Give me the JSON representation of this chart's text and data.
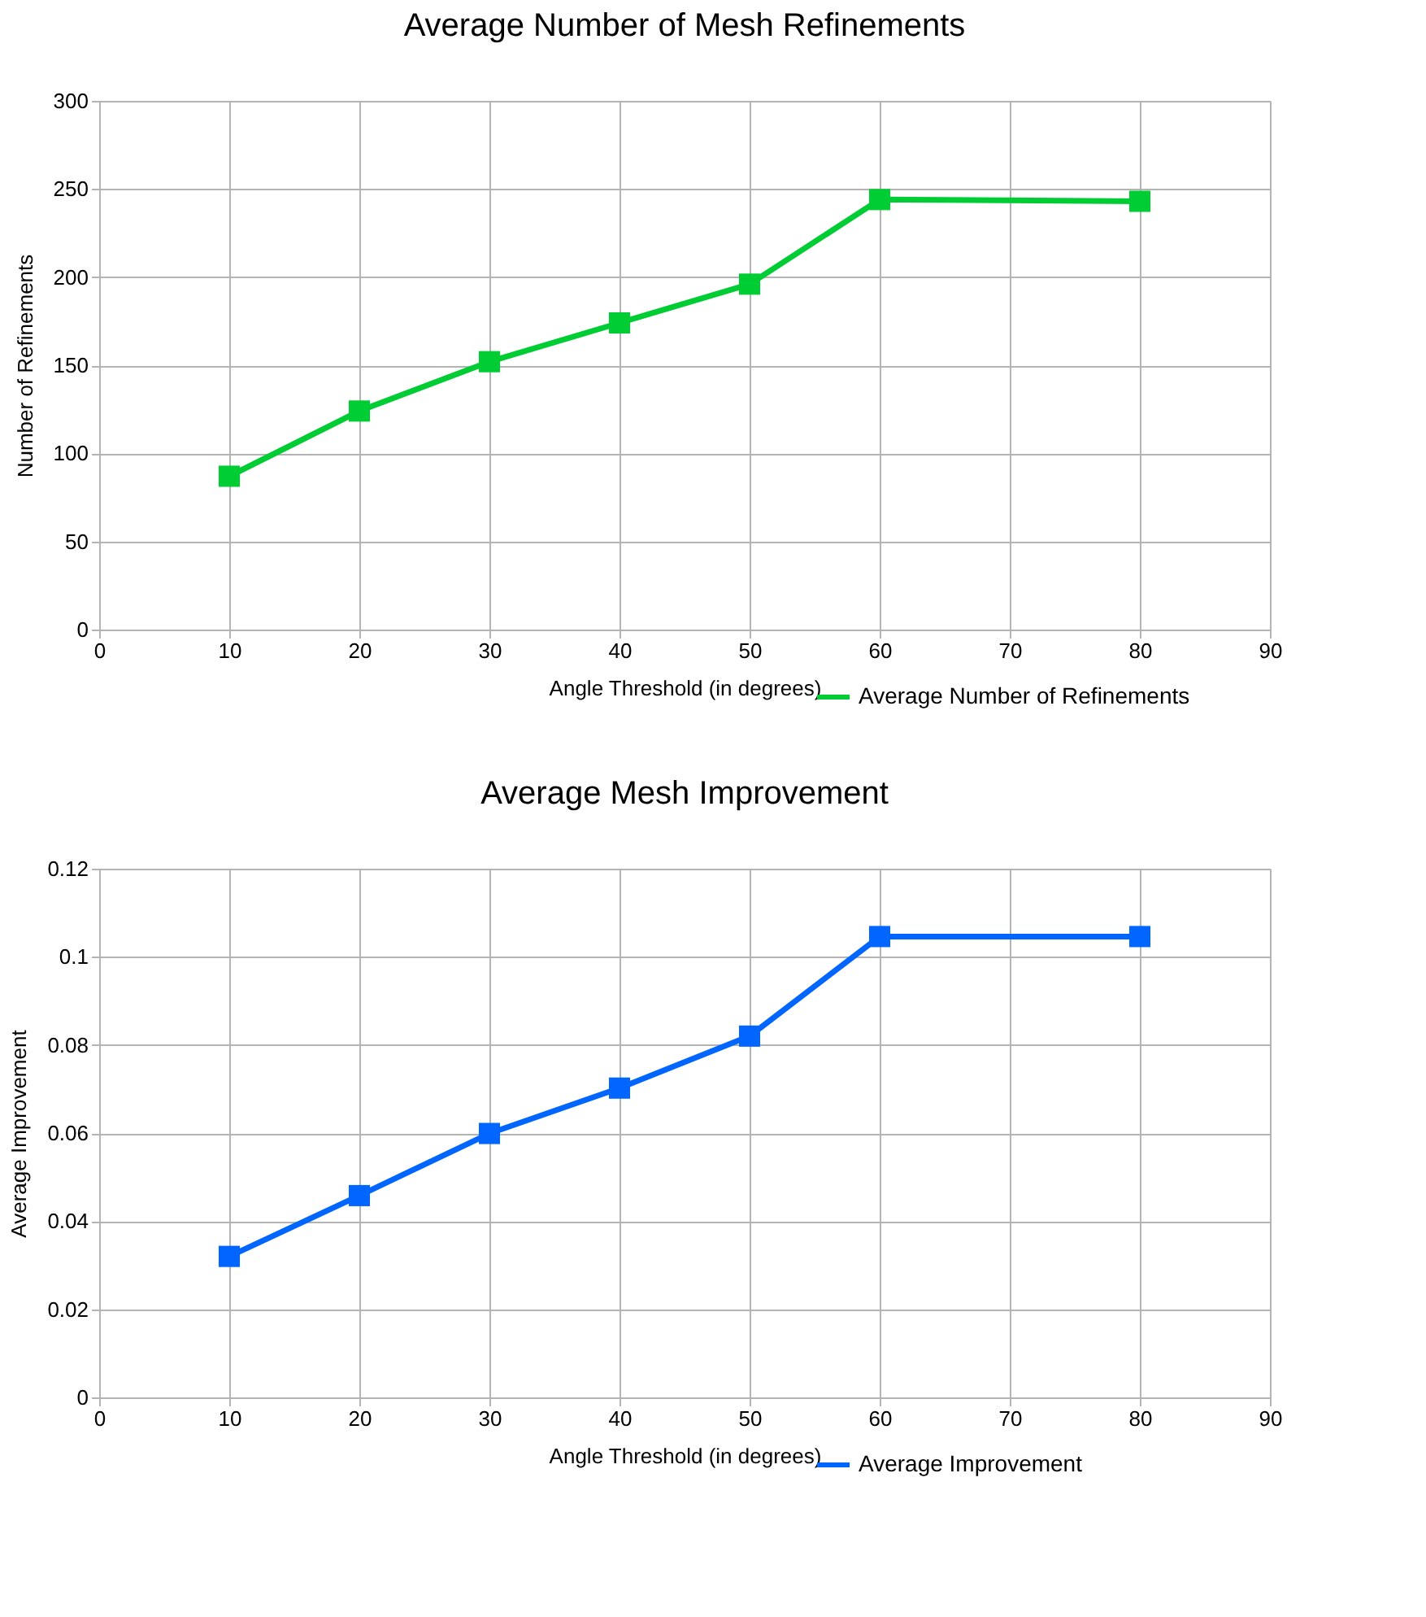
{
  "chart_data": [
    {
      "type": "line",
      "title": "Average Number of Mesh Refinements",
      "xlabel": "Angle Threshold (in degrees)",
      "ylabel": "Number of Refinements",
      "x": [
        10,
        20,
        30,
        40,
        50,
        60,
        80
      ],
      "series": [
        {
          "name": "Average Number of Refinements",
          "color": "#00cc33",
          "values": [
            87,
            124,
            152,
            174,
            196,
            244,
            243
          ]
        }
      ],
      "xlim": [
        0,
        90
      ],
      "xticks": [
        0,
        10,
        20,
        30,
        40,
        50,
        60,
        70,
        80,
        90
      ],
      "ylim": [
        0,
        300
      ],
      "yticks": [
        0,
        50,
        100,
        150,
        200,
        250,
        300
      ],
      "grid": true,
      "legend": "bottom right",
      "marker": "square",
      "line_style": "solid"
    },
    {
      "type": "line",
      "title": "Average Mesh Improvement",
      "xlabel": "Angle Threshold (in degrees)",
      "ylabel": "Average Improvement",
      "x": [
        10,
        20,
        30,
        40,
        50,
        60,
        80
      ],
      "series": [
        {
          "name": "Average Improvement",
          "color": "#0066ff",
          "values": [
            0.032,
            0.0458,
            0.0599,
            0.0702,
            0.082,
            0.1046,
            0.1046
          ]
        }
      ],
      "xlim": [
        0,
        90
      ],
      "xticks": [
        0,
        10,
        20,
        30,
        40,
        50,
        60,
        70,
        80,
        90
      ],
      "ylim": [
        0,
        0.12
      ],
      "yticks": [
        0,
        {
          "value": 0.02,
          "label": "0.02"
        },
        {
          "value": 0.04,
          "label": "0.04"
        },
        {
          "value": 0.06,
          "label": "0.06"
        },
        {
          "value": 0.08,
          "label": "0.08"
        },
        {
          "value": 0.1,
          "label": "0.1"
        },
        {
          "value": 0.12,
          "label": "0.12"
        }
      ],
      "grid": true,
      "legend": "bottom right",
      "marker": "square",
      "line_style": "solid"
    }
  ]
}
